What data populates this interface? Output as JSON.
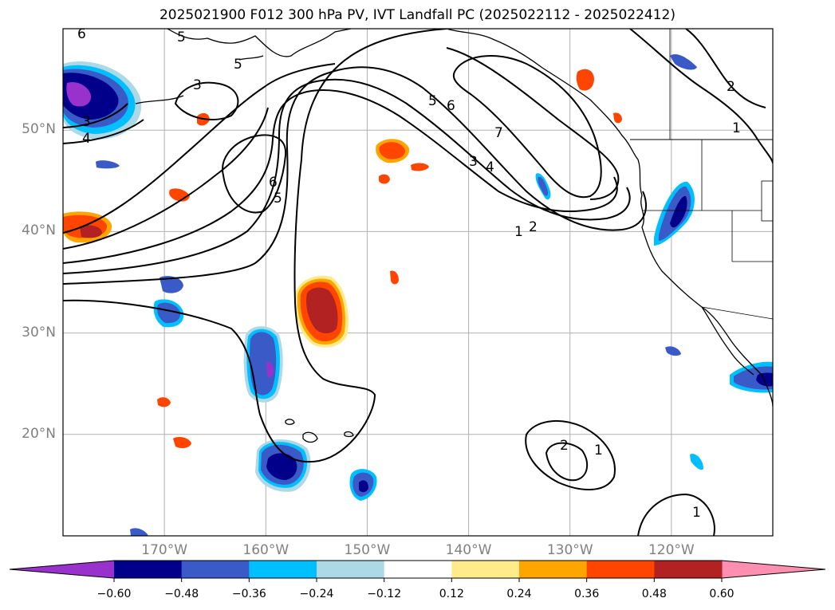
{
  "title": "2025021900 F012 300 hPa PV, IVT Landfall PC (2025022112 - 2025022412)",
  "map": {
    "projection": "PlateCarree",
    "lon_range": [
      -180,
      -110
    ],
    "lat_range": [
      10,
      60
    ],
    "lat_ticks": [
      {
        "label": "50°N",
        "lat": 50
      },
      {
        "label": "40°N",
        "lat": 40
      },
      {
        "label": "30°N",
        "lat": 30
      },
      {
        "label": "20°N",
        "lat": 20
      }
    ],
    "lon_ticks": [
      {
        "label": "170°W",
        "lon": -170
      },
      {
        "label": "160°W",
        "lon": -160
      },
      {
        "label": "150°W",
        "lon": -150
      },
      {
        "label": "140°W",
        "lon": -140
      },
      {
        "label": "130°W",
        "lon": -130
      },
      {
        "label": "120°W",
        "lon": -120
      }
    ],
    "gridlines": true,
    "contour_variable": "300 hPa PV",
    "contour_labels": [
      "6",
      "5",
      "3",
      "5",
      "3",
      "4",
      "6",
      "5",
      "5",
      "6",
      "7",
      "3",
      "4",
      "1",
      "2",
      "2",
      "1",
      "2",
      "1",
      "1"
    ],
    "shaded_variable": "IVT Landfall PC"
  },
  "colorbar": {
    "ticks": [
      "−0.60",
      "−0.48",
      "−0.36",
      "−0.24",
      "−0.12",
      "0.12",
      "0.24",
      "0.36",
      "0.48",
      "0.60"
    ],
    "colors": [
      "#9932CC",
      "#00008B",
      "#3A5BC7",
      "#00BFFF",
      "#ADD8E6",
      "#FFFFFF",
      "#FFEB8A",
      "#FFA500",
      "#FF4500",
      "#B22222",
      "#FF8FB0"
    ],
    "extend": "both"
  }
}
